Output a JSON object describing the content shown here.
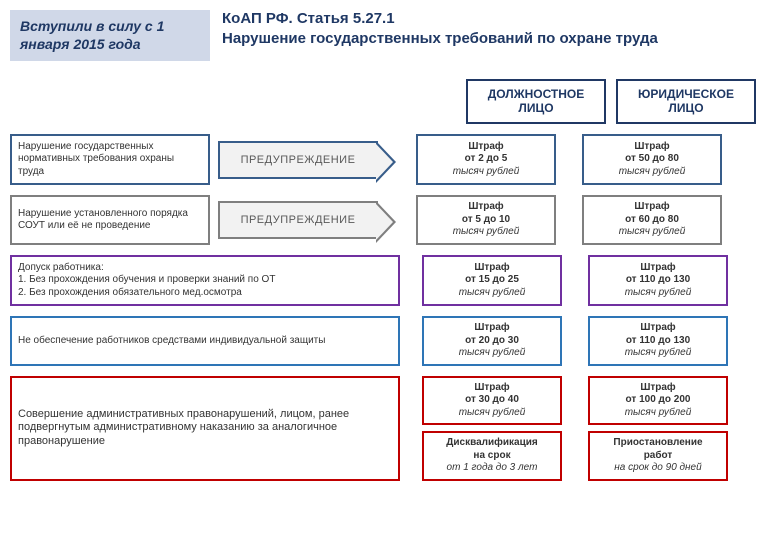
{
  "header": {
    "date_box": "Вступили в силу с 1 января 2015 года",
    "title_line1": "КоАП РФ. Статья 5.27.1",
    "title_line2": "Нарушение государственных требований по охране труда"
  },
  "col_headers": {
    "official": "ДОЛЖНОСТНОЕ ЛИЦО",
    "legal": "ЮРИДИЧЕСКОЕ ЛИЦО"
  },
  "colors": {
    "header_official_border": "#203864",
    "header_legal_border": "#203864",
    "row1": "#385d8a",
    "row2": "#7f7f7f",
    "row3": "#7030a0",
    "row4": "#2e75b6",
    "row5": "#c00000"
  },
  "rows": [
    {
      "desc": "Нарушение государственных нормативных требования охраны труда",
      "arrow": "ПРЕДУПРЕЖДЕНИЕ",
      "border": "#385d8a",
      "p_off": {
        "l1": "Штраф",
        "l2": "от 2 до 5",
        "l3": "тысяч рублей",
        "border": "#385d8a"
      },
      "p_leg": {
        "l1": "Штраф",
        "l2": "от 50 до 80",
        "l3": "тысяч рублей",
        "border": "#385d8a"
      }
    },
    {
      "desc": "Нарушение установленного порядка СОУТ или её не проведение",
      "arrow": "ПРЕДУПРЕЖДЕНИЕ",
      "border": "#7f7f7f",
      "p_off": {
        "l1": "Штраф",
        "l2": "от 5 до 10",
        "l3": "тысяч рублей",
        "border": "#7f7f7f"
      },
      "p_leg": {
        "l1": "Штраф",
        "l2": "от 60 до 80",
        "l3": "тысяч рублей",
        "border": "#7f7f7f"
      }
    },
    {
      "desc_html": "Допуск работника:|1.   Без прохождения обучения и проверки знаний по ОТ|2.   Без прохождения обязательного мед.осмотра",
      "border": "#7030a0",
      "p_off": {
        "l1": "Штраф",
        "l2": "от 15 до 25",
        "l3": "тысяч рублей",
        "border": "#7030a0"
      },
      "p_leg": {
        "l1": "Штраф",
        "l2": "от 110 до 130",
        "l3": "тысяч рублей",
        "border": "#7030a0"
      }
    },
    {
      "desc": "Не обеспечение работников средствами индивидуальной защиты",
      "border": "#2e75b6",
      "p_off": {
        "l1": "Штраф",
        "l2": "от 20 до 30",
        "l3": "тысяч рублей",
        "border": "#2e75b6"
      },
      "p_leg": {
        "l1": "Штраф",
        "l2": "от 110 до 130",
        "l3": "тысяч рублей",
        "border": "#2e75b6"
      }
    },
    {
      "desc": "Совершение административных правонарушений, лицом, ранее подвергнутым административному наказанию за аналогичное правонарушение",
      "border": "#c00000",
      "p_off": {
        "l1": "Штраф",
        "l2": "от 30 до 40",
        "l3": "тысяч рублей",
        "border": "#c00000"
      },
      "p_leg": {
        "l1": "Штраф",
        "l2": "от 100 до 200",
        "l3": "тысяч рублей",
        "border": "#c00000"
      },
      "p_off2": {
        "l1": "Дисквалификация",
        "l2": "на срок",
        "l3": "от 1  года до 3 лет",
        "border": "#c00000"
      },
      "p_leg2": {
        "l1": "Приостановление",
        "l2": "работ",
        "l3": "на срок до 90 дней",
        "border": "#c00000"
      }
    }
  ]
}
